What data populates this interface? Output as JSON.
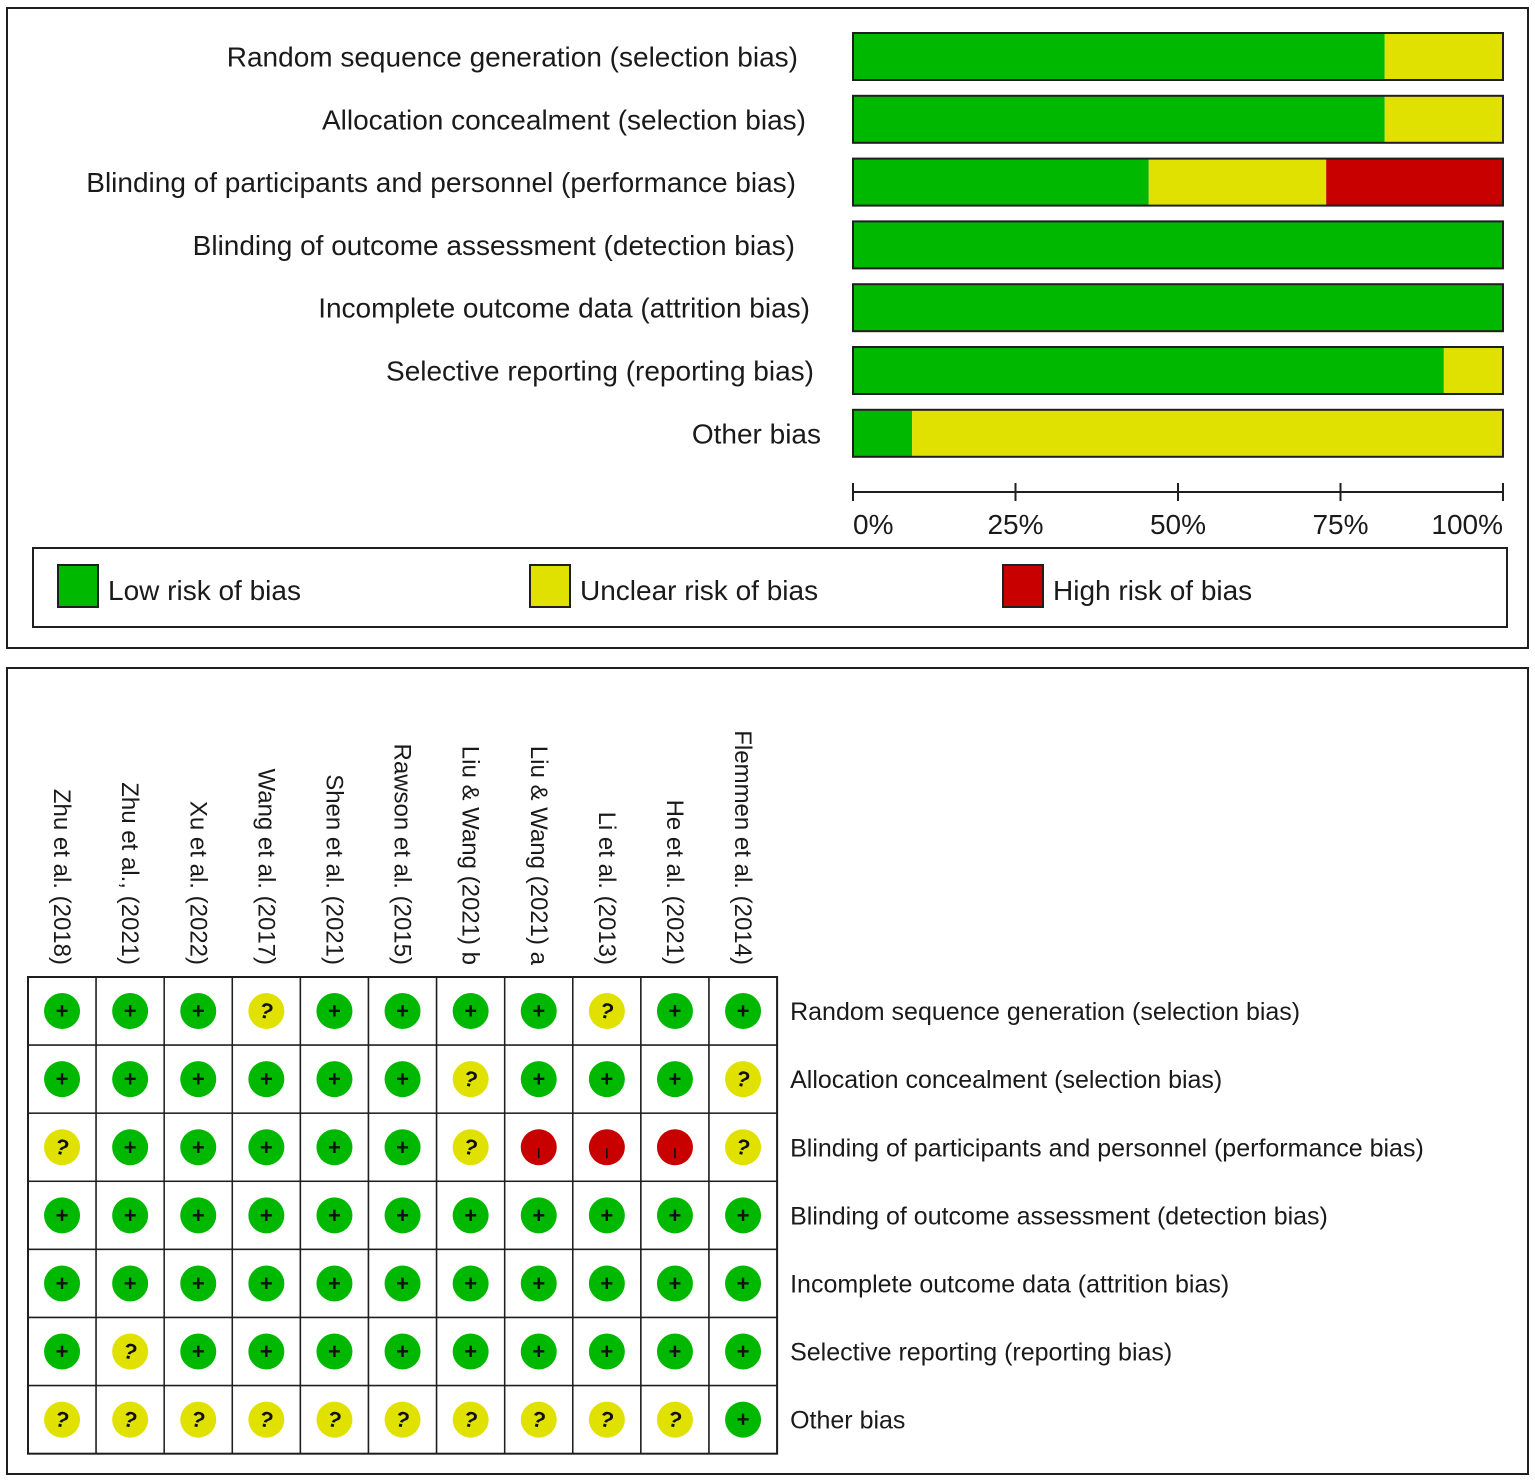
{
  "chart_data": [
    {
      "type": "bar",
      "orientation": "horizontal",
      "stacked": true,
      "categories": [
        "Random sequence generation (selection bias)",
        "Allocation concealment (selection bias)",
        "Blinding of participants and personnel (performance bias)",
        "Blinding of outcome assessment (detection bias)",
        "Incomplete outcome data (attrition bias)",
        "Selective reporting (reporting bias)",
        "Other bias"
      ],
      "series": [
        {
          "name": "Low risk of bias",
          "color": "#00b800",
          "values": [
            81.8,
            81.8,
            45.5,
            100,
            100,
            90.9,
            9.1
          ]
        },
        {
          "name": "Unclear risk of bias",
          "color": "#e1e100",
          "values": [
            18.2,
            18.2,
            27.3,
            0,
            0,
            9.1,
            90.9
          ]
        },
        {
          "name": "High risk of bias",
          "color": "#c80000",
          "values": [
            0,
            0,
            27.3,
            0,
            0,
            0,
            0
          ]
        }
      ],
      "xlim": [
        0,
        100
      ],
      "ticks": [
        "0%",
        "25%",
        "50%",
        "75%",
        "100%"
      ],
      "legend_position": "bottom"
    },
    {
      "type": "table",
      "studies": [
        "Zhu et al. (2018)",
        "Zhu et al., (2021)",
        "Xu et al. (2022)",
        "Wang et al. (2017)",
        "Shen et al. (2021)",
        "Rawson et al. (2015)",
        "Liu & Wang (2021) b",
        "Liu & Wang (2021) a",
        "Li et al. (2013)",
        "He et al. (2021)",
        "Flemmen et al. (2014)"
      ],
      "domains": [
        "Random sequence generation (selection bias)",
        "Allocation concealment (selection bias)",
        "Blinding of participants and personnel (performance bias)",
        "Blinding of outcome assessment (detection bias)",
        "Incomplete outcome data (attrition bias)",
        "Selective reporting (reporting bias)",
        "Other bias"
      ],
      "judgements": [
        [
          "+",
          "+",
          "+",
          "?",
          "+",
          "+",
          "+",
          "+",
          "?",
          "+",
          "+"
        ],
        [
          "+",
          "+",
          "+",
          "+",
          "+",
          "+",
          "?",
          "+",
          "+",
          "+",
          "?"
        ],
        [
          "?",
          "+",
          "+",
          "+",
          "+",
          "+",
          "?",
          "-",
          "-",
          "-",
          "?"
        ],
        [
          "+",
          "+",
          "+",
          "+",
          "+",
          "+",
          "+",
          "+",
          "+",
          "+",
          "+"
        ],
        [
          "+",
          "+",
          "+",
          "+",
          "+",
          "+",
          "+",
          "+",
          "+",
          "+",
          "+"
        ],
        [
          "+",
          "?",
          "+",
          "+",
          "+",
          "+",
          "+",
          "+",
          "+",
          "+",
          "+"
        ],
        [
          "?",
          "?",
          "?",
          "?",
          "?",
          "?",
          "?",
          "?",
          "?",
          "?",
          "+"
        ]
      ],
      "colors": {
        "+": "#00b800",
        "?": "#e1e100",
        "-": "#c80000"
      }
    }
  ]
}
